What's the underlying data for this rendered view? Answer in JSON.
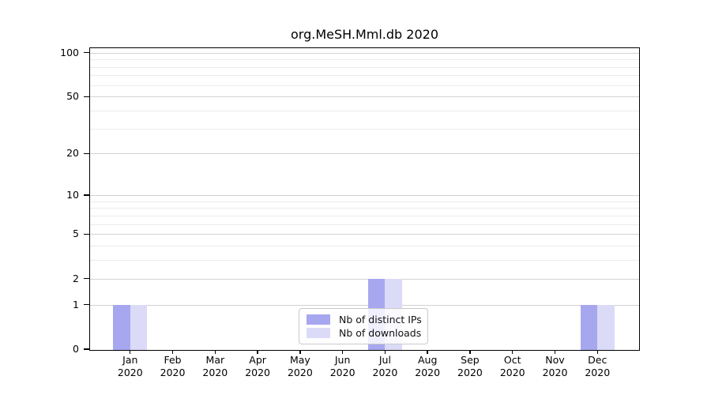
{
  "chart_data": {
    "type": "bar",
    "title": "org.MeSH.Mml.db 2020",
    "categories": [
      {
        "month": "Jan",
        "year": "2020"
      },
      {
        "month": "Feb",
        "year": "2020"
      },
      {
        "month": "Mar",
        "year": "2020"
      },
      {
        "month": "Apr",
        "year": "2020"
      },
      {
        "month": "May",
        "year": "2020"
      },
      {
        "month": "Jun",
        "year": "2020"
      },
      {
        "month": "Jul",
        "year": "2020"
      },
      {
        "month": "Aug",
        "year": "2020"
      },
      {
        "month": "Sep",
        "year": "2020"
      },
      {
        "month": "Oct",
        "year": "2020"
      },
      {
        "month": "Nov",
        "year": "2020"
      },
      {
        "month": "Dec",
        "year": "2020"
      }
    ],
    "series": [
      {
        "name": "Nb of distinct IPs",
        "color": "#a7a7f0",
        "values": [
          1,
          0,
          0,
          0,
          0,
          0,
          2,
          0,
          0,
          0,
          0,
          1
        ]
      },
      {
        "name": "Nb of downloads",
        "color": "#dbdbf8",
        "values": [
          1,
          0,
          0,
          0,
          0,
          0,
          2,
          0,
          0,
          0,
          0,
          1
        ]
      }
    ],
    "xlabel": "",
    "ylabel": "",
    "y_axis": {
      "scale": "log1p",
      "major_ticks": [
        0,
        1,
        2,
        5,
        10,
        20,
        50,
        100
      ],
      "minor_ticks": [
        3,
        4,
        6,
        7,
        8,
        9,
        30,
        40,
        60,
        70,
        80,
        90
      ],
      "range": [
        0,
        112
      ]
    },
    "grid": {
      "orientation": "horizontal",
      "major_color": "#d2d2d2",
      "minor_color": "#ebebeb"
    },
    "legend": {
      "position": "lower center",
      "items": [
        "Nb of distinct IPs",
        "Nb of downloads"
      ]
    }
  }
}
